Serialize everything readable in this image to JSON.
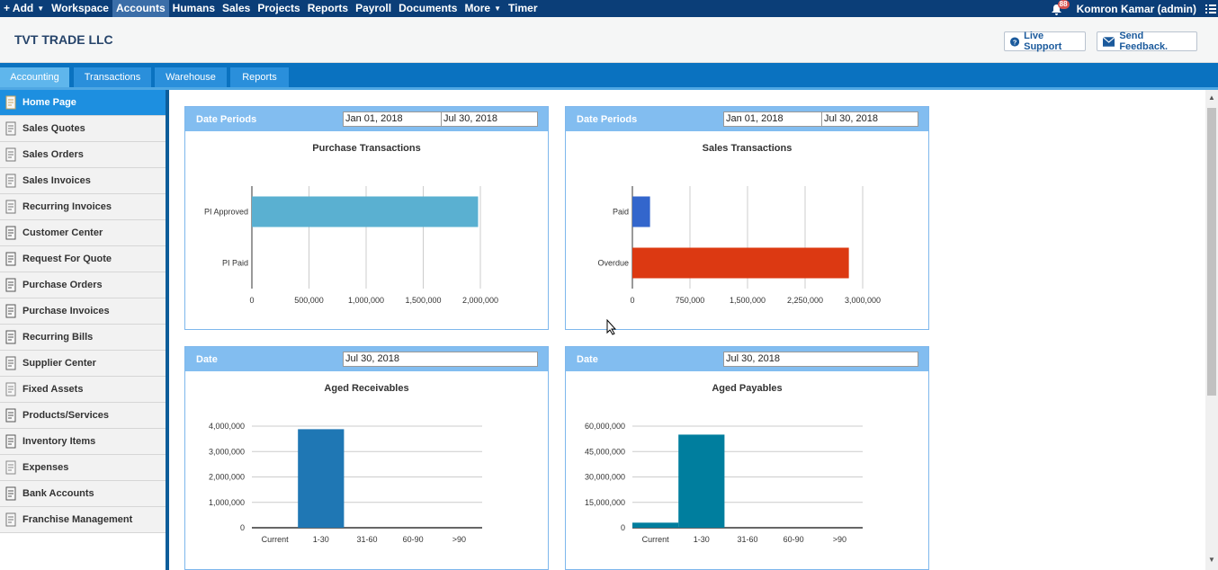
{
  "topnav": {
    "items": [
      "+ Add",
      "Workspace",
      "Accounts",
      "Humans",
      "Sales",
      "Projects",
      "Reports",
      "Payroll",
      "Documents",
      "More",
      "Timer"
    ],
    "active": "Accounts",
    "notification_count": "88",
    "user": "Komron Kamar (admin)"
  },
  "header": {
    "company": "TVT TRADE LLC",
    "live_support": "Live Support",
    "send_feedback": "Send Feedback."
  },
  "tabs": [
    "Accounting",
    "Transactions",
    "Warehouse",
    "Reports"
  ],
  "sidebar": {
    "items": [
      "Home Page",
      "Sales Quotes",
      "Sales Orders",
      "Sales Invoices",
      "Recurring Invoices",
      "Customer Center",
      "Request For Quote",
      "Purchase Orders",
      "Purchase Invoices",
      "Recurring Bills",
      "Supplier Center",
      "Fixed Assets",
      "Products/Services",
      "Inventory Items",
      "Expenses",
      "Bank Accounts",
      "Franchise Management"
    ]
  },
  "panels": {
    "purchase": {
      "head": "Date Periods",
      "from": "Jan 01, 2018",
      "to": "Jul 30, 2018",
      "title": "Purchase Transactions"
    },
    "sales": {
      "head": "Date Periods",
      "from": "Jan 01, 2018",
      "to": "Jul 30, 2018",
      "title": "Sales Transactions"
    },
    "receivables": {
      "head": "Date",
      "date": "Jul 30, 2018",
      "title": "Aged Receivables"
    },
    "payables": {
      "head": "Date",
      "date": "Jul 30, 2018",
      "title": "Aged Payables"
    }
  },
  "colors": {
    "topnav": "#0b3e78",
    "tabbar": "#0a72c0",
    "panel_head": "#82bdf0"
  },
  "chart_data": [
    {
      "type": "bar",
      "orientation": "horizontal",
      "title": "Purchase Transactions",
      "categories": [
        "PI Approved",
        "PI Paid"
      ],
      "values": [
        1980000,
        0
      ],
      "xlim": [
        0,
        2000000
      ],
      "ticks": [
        "0",
        "500,000",
        "1,000,000",
        "1,500,000",
        "2,000,000"
      ],
      "color": "#5ab0d1"
    },
    {
      "type": "bar",
      "orientation": "horizontal",
      "title": "Sales Transactions",
      "categories": [
        "Paid",
        "Overdue"
      ],
      "values": [
        230000,
        2820000
      ],
      "xlim": [
        0,
        3000000
      ],
      "ticks": [
        "0",
        "750,000",
        "1,500,000",
        "2,250,000",
        "3,000,000"
      ],
      "colors": [
        "#3366cc",
        "#dc3912"
      ]
    },
    {
      "type": "bar",
      "title": "Aged Receivables",
      "categories": [
        "Current",
        "1-30",
        "31-60",
        "60-90",
        ">90"
      ],
      "values": [
        0,
        3880000,
        0,
        0,
        0
      ],
      "ylim": [
        0,
        4000000
      ],
      "ticks": [
        "0",
        "1,000,000",
        "2,000,000",
        "3,000,000",
        "4,000,000"
      ],
      "color": "#1f77b4"
    },
    {
      "type": "bar",
      "title": "Aged Payables",
      "categories": [
        "Current",
        "1-30",
        "31-60",
        "60-90",
        ">90"
      ],
      "values": [
        3000000,
        55000000,
        0,
        0,
        0
      ],
      "ylim": [
        0,
        60000000
      ],
      "ticks": [
        "0",
        "15,000,000",
        "30,000,000",
        "45,000,000",
        "60,000,000"
      ],
      "color": "#007e9e"
    }
  ]
}
